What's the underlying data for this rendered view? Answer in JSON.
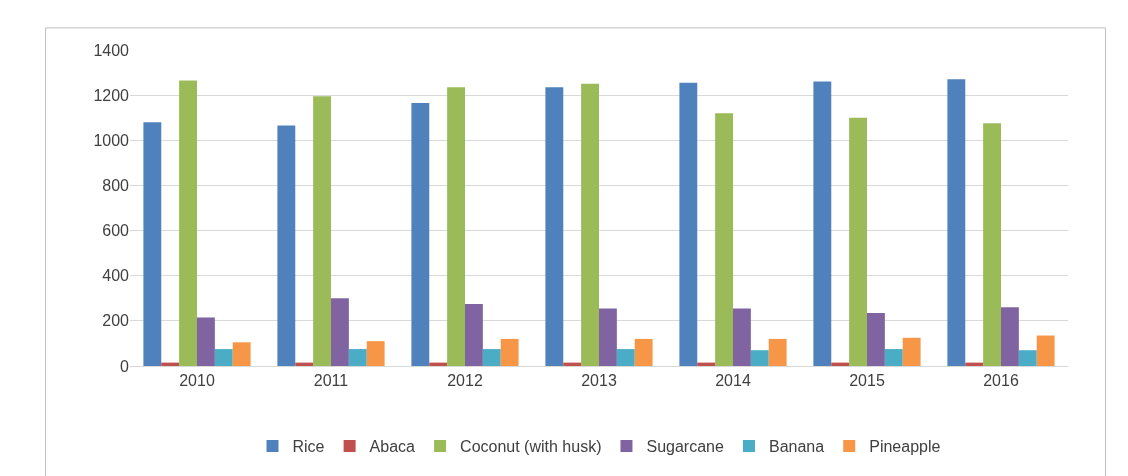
{
  "chart_data": {
    "type": "bar",
    "categories": [
      "2010",
      "2011",
      "2012",
      "2013",
      "2014",
      "2015",
      "2016"
    ],
    "series": [
      {
        "name": "Rice",
        "color": "#4f81bd",
        "values": [
          1080,
          1065,
          1165,
          1235,
          1255,
          1260,
          1270
        ]
      },
      {
        "name": "Abaca",
        "color": "#c0504d",
        "values": [
          15,
          15,
          15,
          15,
          15,
          15,
          15
        ]
      },
      {
        "name": "Coconut (with husk)",
        "color": "#9bbb59",
        "values": [
          1265,
          1195,
          1235,
          1250,
          1120,
          1100,
          1075
        ]
      },
      {
        "name": "Sugarcane",
        "color": "#8064a2",
        "values": [
          215,
          300,
          275,
          255,
          255,
          235,
          260
        ]
      },
      {
        "name": "Banana",
        "color": "#4bacc6",
        "values": [
          75,
          75,
          75,
          75,
          70,
          75,
          70
        ]
      },
      {
        "name": "Pineapple",
        "color": "#f79646",
        "values": [
          105,
          110,
          120,
          120,
          120,
          125,
          135
        ]
      }
    ],
    "ylim": [
      0,
      1400
    ],
    "yticks": [
      0,
      200,
      400,
      600,
      800,
      1000,
      1200,
      1400
    ],
    "grid": "y",
    "legend": "bottom"
  }
}
